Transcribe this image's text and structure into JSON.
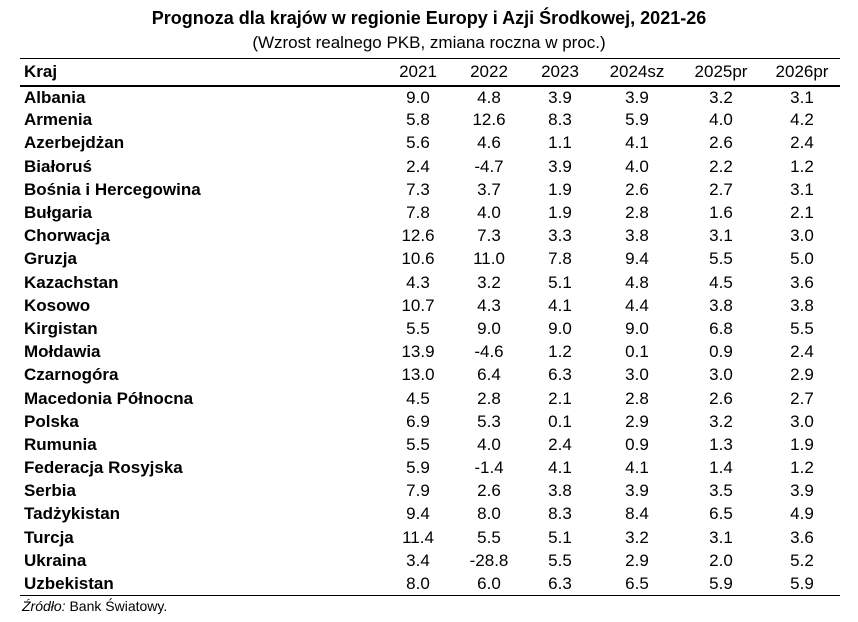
{
  "header": {
    "title": "Prognoza dla krajów w regionie Europy i Azji Środkowej, 2021-26",
    "subtitle": "(Wzrost realnego PKB, zmiana roczna w proc.)"
  },
  "table": {
    "columns": [
      "Kraj",
      "2021",
      "2022",
      "2023",
      "2024sz",
      "2025pr",
      "2026pr"
    ],
    "rows": [
      [
        "Albania",
        "9.0",
        "4.8",
        "3.9",
        "3.9",
        "3.2",
        "3.1"
      ],
      [
        "Armenia",
        "5.8",
        "12.6",
        "8.3",
        "5.9",
        "4.0",
        "4.2"
      ],
      [
        "Azerbejdżan",
        "5.6",
        "4.6",
        "1.1",
        "4.1",
        "2.6",
        "2.4"
      ],
      [
        "Białoruś",
        "2.4",
        "-4.7",
        "3.9",
        "4.0",
        "2.2",
        "1.2"
      ],
      [
        "Bośnia i Hercegowina",
        "7.3",
        "3.7",
        "1.9",
        "2.6",
        "2.7",
        "3.1"
      ],
      [
        "Bułgaria",
        "7.8",
        "4.0",
        "1.9",
        "2.8",
        "1.6",
        "2.1"
      ],
      [
        "Chorwacja",
        "12.6",
        "7.3",
        "3.3",
        "3.8",
        "3.1",
        "3.0"
      ],
      [
        "Gruzja",
        "10.6",
        "11.0",
        "7.8",
        "9.4",
        "5.5",
        "5.0"
      ],
      [
        "Kazachstan",
        "4.3",
        "3.2",
        "5.1",
        "4.8",
        "4.5",
        "3.6"
      ],
      [
        "Kosowo",
        "10.7",
        "4.3",
        "4.1",
        "4.4",
        "3.8",
        "3.8"
      ],
      [
        "Kirgistan",
        "5.5",
        "9.0",
        "9.0",
        "9.0",
        "6.8",
        "5.5"
      ],
      [
        "Mołdawia",
        "13.9",
        "-4.6",
        "1.2",
        "0.1",
        "0.9",
        "2.4"
      ],
      [
        "Czarnogóra",
        "13.0",
        "6.4",
        "6.3",
        "3.0",
        "3.0",
        "2.9"
      ],
      [
        "Macedonia Północna",
        "4.5",
        "2.8",
        "2.1",
        "2.8",
        "2.6",
        "2.7"
      ],
      [
        "Polska",
        "6.9",
        "5.3",
        "0.1",
        "2.9",
        "3.2",
        "3.0"
      ],
      [
        "Rumunia",
        "5.5",
        "4.0",
        "2.4",
        "0.9",
        "1.3",
        "1.9"
      ],
      [
        "Federacja Rosyjska",
        "5.9",
        "-1.4",
        "4.1",
        "4.1",
        "1.4",
        "1.2"
      ],
      [
        "Serbia",
        "7.9",
        "2.6",
        "3.8",
        "3.9",
        "3.5",
        "3.9"
      ],
      [
        "Tadżykistan",
        "9.4",
        "8.0",
        "8.3",
        "8.4",
        "6.5",
        "4.9"
      ],
      [
        "Turcja",
        "11.4",
        "5.5",
        "5.1",
        "3.2",
        "3.1",
        "3.6"
      ],
      [
        "Ukraina",
        "3.4",
        "-28.8",
        "5.5",
        "2.9",
        "2.0",
        "5.2"
      ],
      [
        "Uzbekistan",
        "8.0",
        "6.0",
        "6.3",
        "6.5",
        "5.9",
        "5.9"
      ]
    ]
  },
  "source": {
    "label": "Źródło:",
    "text": "Bank Światowy."
  }
}
